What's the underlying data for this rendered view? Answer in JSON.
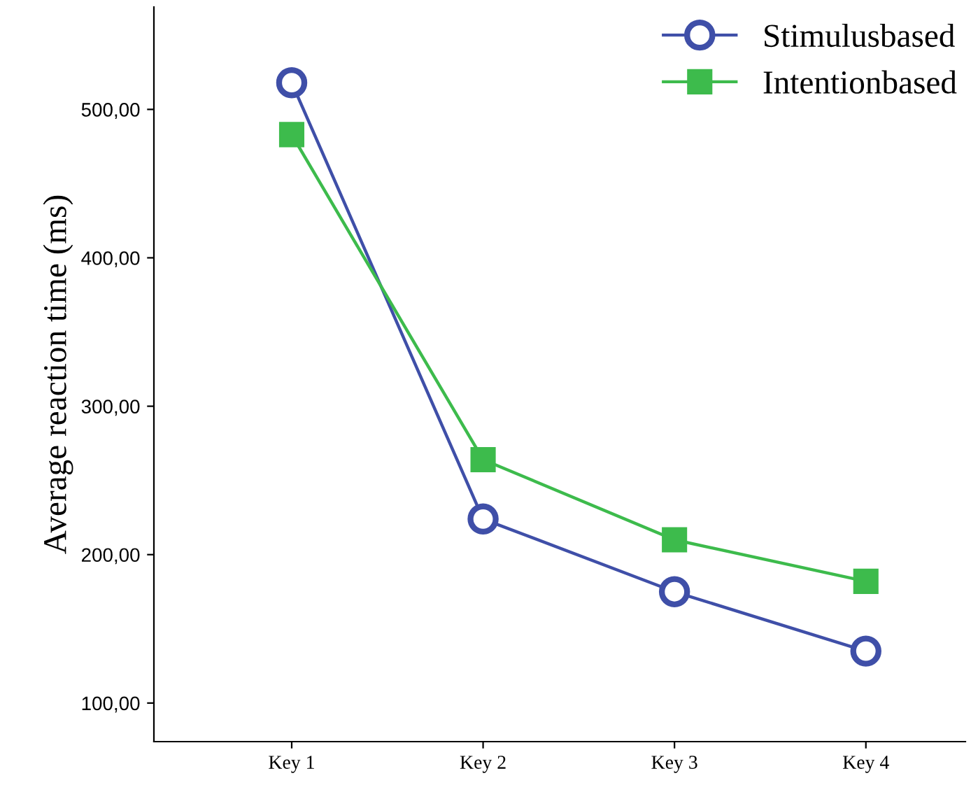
{
  "chart_data": {
    "type": "line",
    "ylabel": "Average reaction time (ms)",
    "categories": [
      "Key 1",
      "Key 2",
      "Key 3",
      "Key 4"
    ],
    "series": [
      {
        "name": "Stimulusbased",
        "color": "#3f4fa8",
        "marker": "circle",
        "values": [
          518,
          224,
          175,
          135
        ]
      },
      {
        "name": "Intentionbased",
        "color": "#3dbb4c",
        "marker": "square",
        "values": [
          483,
          264,
          210,
          182
        ]
      }
    ],
    "ylim": [
      74,
      569
    ],
    "yticks": [
      {
        "value": 100,
        "label": "100,00"
      },
      {
        "value": 200,
        "label": "200,00"
      },
      {
        "value": 300,
        "label": "300,00"
      },
      {
        "value": 400,
        "label": "400,00"
      },
      {
        "value": 500,
        "label": "500,00"
      }
    ],
    "grid": false,
    "legend": "top right"
  }
}
